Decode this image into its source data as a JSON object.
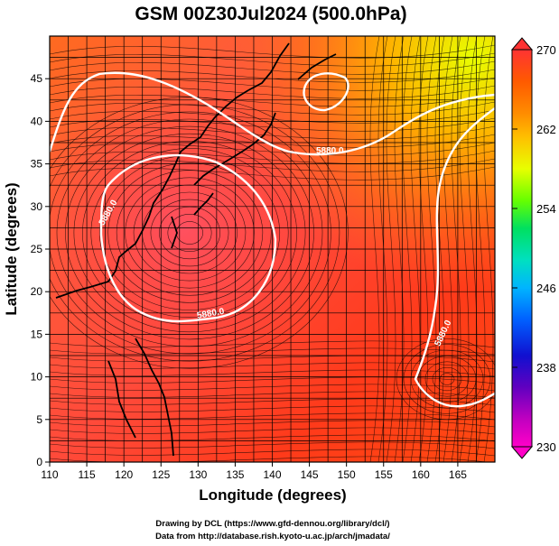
{
  "title": "GSM 00Z30Jul2024 (500.0hPa)",
  "x_axis": {
    "label": "Longitude (degrees)",
    "min": 110,
    "max": 170,
    "ticks": [
      "110",
      "115",
      "120",
      "125",
      "130",
      "135",
      "140",
      "145",
      "150",
      "155",
      "160",
      "165"
    ]
  },
  "y_axis": {
    "label": "Latitude  (degrees)",
    "min": 0,
    "max": 50,
    "ticks": [
      "0",
      "5",
      "10",
      "15",
      "20",
      "25",
      "30",
      "35",
      "40",
      "45"
    ]
  },
  "colorbar": {
    "ticks": [
      "270",
      "262",
      "254",
      "246",
      "238",
      "230"
    ],
    "colors": [
      "#ff3333",
      "#ff5a00",
      "#ff8c00",
      "#ffbf00",
      "#e8ff00",
      "#66ff00",
      "#00e060",
      "#00e0c0",
      "#00b4ff",
      "#0060ff",
      "#1010d0",
      "#6000c0",
      "#c000c0",
      "#ff00c8"
    ]
  },
  "contours": [
    {
      "label": "5880.0"
    },
    {
      "label": "5880.0"
    },
    {
      "label": "5880.0"
    },
    {
      "label": "5880.0"
    }
  ],
  "credits": {
    "line1": "Drawing by DCL (https://www.gfd-dennou.org/library/dcl/)",
    "line2": "Data from http://database.rish.kyoto-u.ac.jp/arch/jmadata/"
  }
}
